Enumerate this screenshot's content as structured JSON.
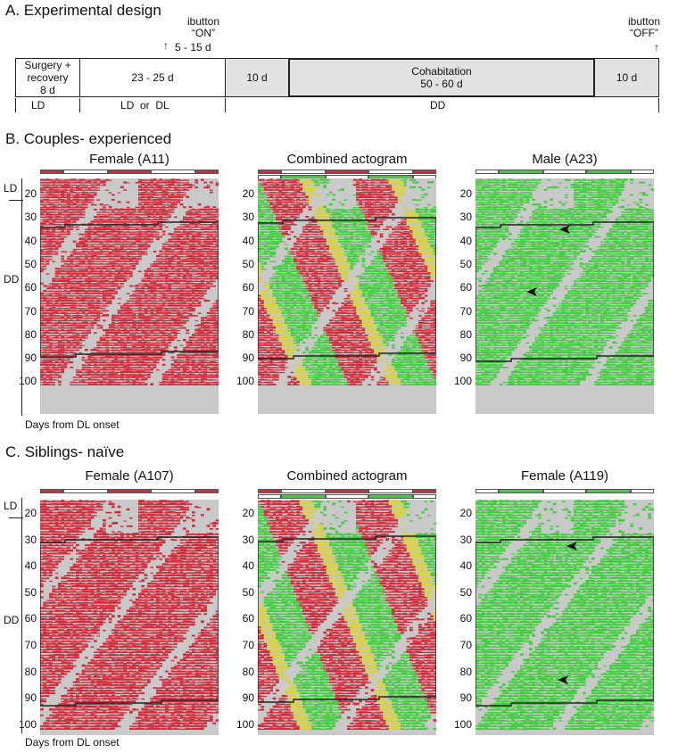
{
  "sectionA": {
    "title": "A. Experimental design",
    "ibutton_on": {
      "line1": "ibutton",
      "line2": "“ON”",
      "range": "5 - 15 d"
    },
    "ibutton_off": {
      "line1": "ibutton",
      "line2": "“OFF”"
    },
    "boxes": [
      {
        "line1": "Surgery +",
        "line2": "recovery",
        "line3": "8 d"
      },
      {
        "text": "23 - 25 d"
      },
      {
        "text": "10 d"
      },
      {
        "line1": "Cohabitation",
        "line2": "50 - 60 d"
      },
      {
        "text": "10 d"
      }
    ],
    "phases": [
      "LD",
      "LD  or  DL",
      "DD"
    ]
  },
  "sectionB": {
    "title": "B. Couples- experienced",
    "panels": [
      "Female (A11)",
      "Combined actogram",
      "Male (A23)"
    ],
    "ticks": [
      "20",
      "30",
      "40",
      "50",
      "60",
      "70",
      "80",
      "90",
      "100"
    ],
    "ld_label": "LD",
    "dd_label": "DD",
    "xlabel": "Days from DL onset"
  },
  "sectionC": {
    "title": "C. Siblings- naïve",
    "panels": [
      "Female (A107)",
      "Combined actogram",
      "Female (A119)"
    ],
    "ticks": [
      "20",
      "30",
      "40",
      "50",
      "60",
      "70",
      "80",
      "90",
      "100"
    ],
    "ld_label": "LD",
    "dd_label": "DD",
    "xlabel": "Days from DL onset"
  },
  "colors": {
    "female": "#d42a3a",
    "male": "#3fcf3c",
    "mix": "#d9d23a",
    "bg": "#c9c9c9",
    "light": "#ffffff"
  }
}
